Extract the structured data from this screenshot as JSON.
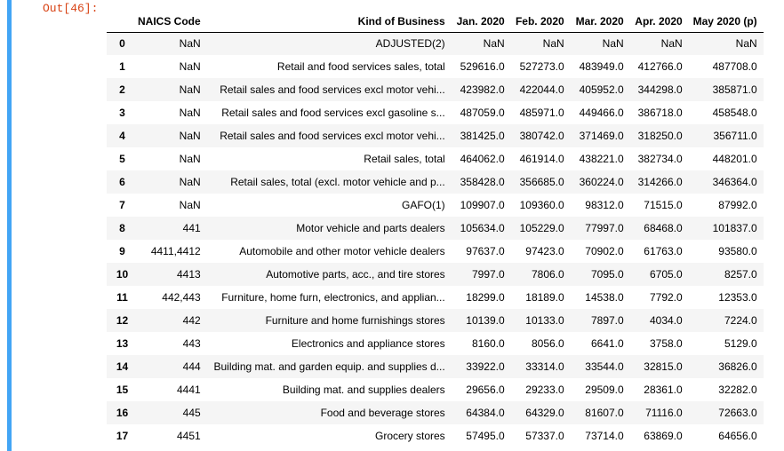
{
  "prompt": "Out[46]:",
  "table": {
    "columns": [
      "NAICS Code",
      "Kind of Business",
      "Jan. 2020",
      "Feb. 2020",
      "Mar. 2020",
      "Apr. 2020",
      "May 2020 (p)"
    ],
    "index": [
      "0",
      "1",
      "2",
      "3",
      "4",
      "5",
      "6",
      "7",
      "8",
      "9",
      "10",
      "11",
      "12",
      "13",
      "14",
      "15",
      "16",
      "17"
    ],
    "rows": [
      [
        "NaN",
        "ADJUSTED(2)",
        "NaN",
        "NaN",
        "NaN",
        "NaN",
        "NaN"
      ],
      [
        "NaN",
        "Retail and food services sales, total",
        "529616.0",
        "527273.0",
        "483949.0",
        "412766.0",
        "487708.0"
      ],
      [
        "NaN",
        "Retail sales and food services excl motor vehi...",
        "423982.0",
        "422044.0",
        "405952.0",
        "344298.0",
        "385871.0"
      ],
      [
        "NaN",
        "Retail sales and food services excl gasoline s...",
        "487059.0",
        "485971.0",
        "449466.0",
        "386718.0",
        "458548.0"
      ],
      [
        "NaN",
        "Retail sales and food services excl motor vehi...",
        "381425.0",
        "380742.0",
        "371469.0",
        "318250.0",
        "356711.0"
      ],
      [
        "NaN",
        "Retail sales, total",
        "464062.0",
        "461914.0",
        "438221.0",
        "382734.0",
        "448201.0"
      ],
      [
        "NaN",
        "Retail sales, total (excl. motor vehicle and p...",
        "358428.0",
        "356685.0",
        "360224.0",
        "314266.0",
        "346364.0"
      ],
      [
        "NaN",
        "GAFO(1)",
        "109907.0",
        "109360.0",
        "98312.0",
        "71515.0",
        "87992.0"
      ],
      [
        "441",
        "Motor vehicle and parts dealers",
        "105634.0",
        "105229.0",
        "77997.0",
        "68468.0",
        "101837.0"
      ],
      [
        "4411,4412",
        "Automobile and other motor vehicle dealers",
        "97637.0",
        "97423.0",
        "70902.0",
        "61763.0",
        "93580.0"
      ],
      [
        "4413",
        "Automotive parts, acc., and tire stores",
        "7997.0",
        "7806.0",
        "7095.0",
        "6705.0",
        "8257.0"
      ],
      [
        "442,443",
        "Furniture, home furn, electronics, and applian...",
        "18299.0",
        "18189.0",
        "14538.0",
        "7792.0",
        "12353.0"
      ],
      [
        "442",
        "Furniture and home furnishings stores",
        "10139.0",
        "10133.0",
        "7897.0",
        "4034.0",
        "7224.0"
      ],
      [
        "443",
        "Electronics and appliance stores",
        "8160.0",
        "8056.0",
        "6641.0",
        "3758.0",
        "5129.0"
      ],
      [
        "444",
        "Building mat. and garden equip. and supplies d...",
        "33922.0",
        "33314.0",
        "33544.0",
        "32815.0",
        "36826.0"
      ],
      [
        "4441",
        "Building mat. and supplies dealers",
        "29656.0",
        "29233.0",
        "29509.0",
        "28361.0",
        "32282.0"
      ],
      [
        "445",
        "Food and beverage stores",
        "64384.0",
        "64329.0",
        "81607.0",
        "71116.0",
        "72663.0"
      ],
      [
        "4451",
        "Grocery stores",
        "57495.0",
        "57337.0",
        "73714.0",
        "63869.0",
        "64656.0"
      ]
    ]
  }
}
